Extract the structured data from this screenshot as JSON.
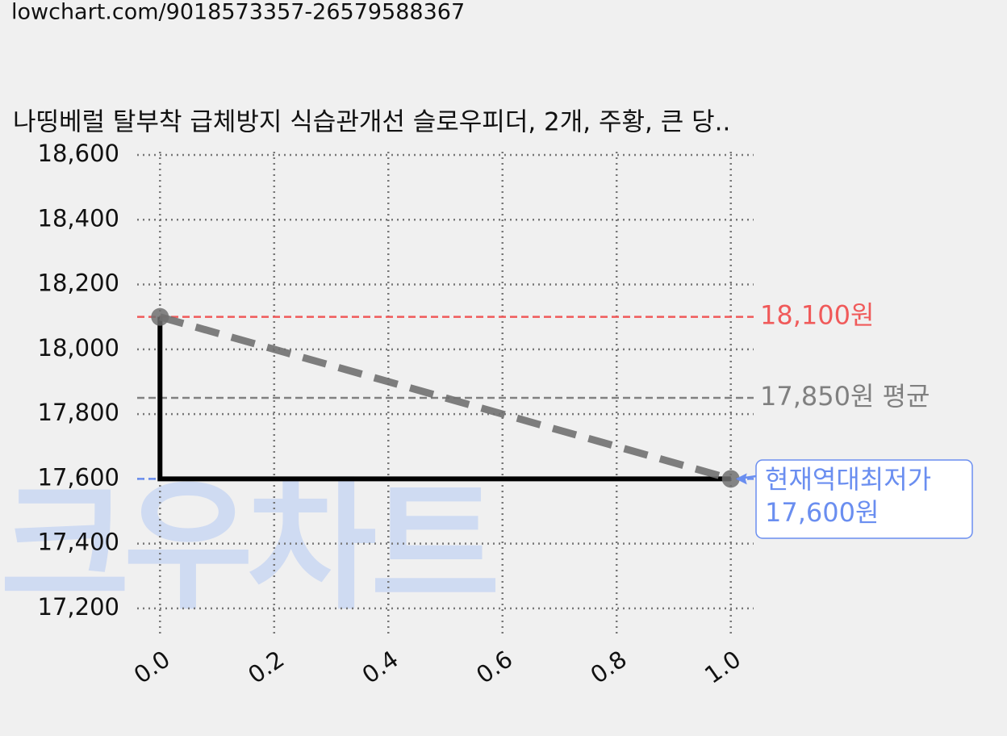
{
  "header": {
    "url": "lowchart.com/9018573357-26579588367"
  },
  "chart_data": {
    "type": "line",
    "title": "나띵베럴 탈부착 급체방지 식습관개선 슬로우피더, 2개, 주황, 큰 당..",
    "watermark": "크우차트",
    "xlim": [
      -0.04,
      1.04
    ],
    "ylim": [
      17120,
      18610
    ],
    "xticks": [
      {
        "value": 0,
        "label": "0.0"
      },
      0.2,
      0.4,
      0.6,
      0.8,
      {
        "value": 1,
        "label": "1.0"
      }
    ],
    "yticks": [
      {
        "value": 17200,
        "label": "17,200"
      },
      {
        "value": 17400,
        "label": "17,400"
      },
      {
        "value": 17600,
        "label": "17,600"
      },
      {
        "value": 17800,
        "label": "17,800"
      },
      {
        "value": 18000,
        "label": "18,000"
      },
      {
        "value": 18200,
        "label": "18,200"
      },
      {
        "value": 18400,
        "label": "18,400"
      },
      {
        "value": 18600,
        "label": "18,600"
      }
    ],
    "grid": true,
    "series": [
      {
        "color": "#000000",
        "style": "solid",
        "x": [
          0,
          0,
          1
        ],
        "values": [
          18100,
          17600,
          17600
        ]
      },
      {
        "color": "#707070",
        "style": "dashed",
        "markers": true,
        "x": [
          0,
          1
        ],
        "values": [
          18100,
          17600
        ]
      }
    ],
    "hlines": [
      {
        "value": 18100,
        "label": "18,100원",
        "color": "#f05a5a"
      },
      {
        "value": 17850,
        "label": "17,850원 평균",
        "color": "#808080"
      },
      {
        "value": 17600,
        "color": "#6a8ef0"
      }
    ],
    "annotation": {
      "x": 1,
      "y": 17600,
      "lines": [
        "현재역대최저가",
        "17,600원"
      ],
      "color": "#6a8ef0"
    }
  }
}
